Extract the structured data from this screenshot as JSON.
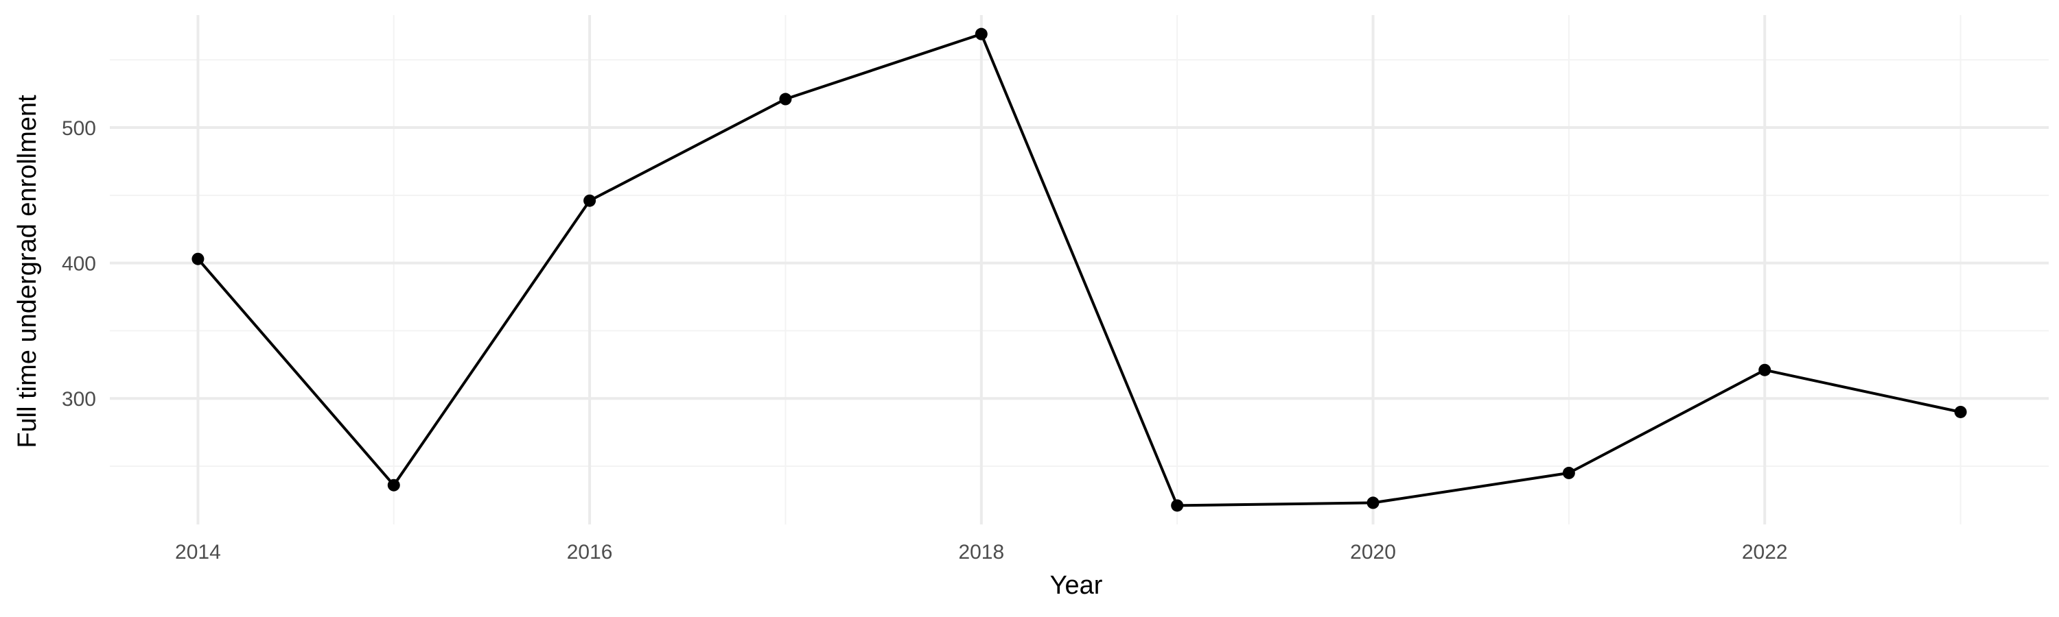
{
  "chart_data": {
    "type": "line",
    "title": "",
    "xlabel": "Year",
    "ylabel": "Full time undergrad enrollment",
    "x": [
      2014,
      2015,
      2016,
      2017,
      2018,
      2019,
      2020,
      2021,
      2022,
      2023
    ],
    "series": [
      {
        "values": [
          403,
          236,
          446,
          521,
          569,
          221,
          223,
          245,
          321,
          290
        ]
      }
    ],
    "xlim": [
      2013.55,
      2023.45
    ],
    "ylim": [
      207,
      583
    ],
    "x_ticks": [
      2014,
      2016,
      2018,
      2020,
      2022
    ],
    "x_tick_labels": [
      "2014",
      "2016",
      "2018",
      "2020",
      "2022"
    ],
    "x_minor_ticks": [
      2015,
      2017,
      2019,
      2021,
      2023
    ],
    "y_ticks": [
      300,
      400,
      500
    ],
    "y_tick_labels": [
      "300",
      "400",
      "500"
    ],
    "y_minor_ticks": [
      250,
      350,
      450,
      550
    ],
    "grid": true,
    "legend": "none",
    "colors": {
      "line": "#000000",
      "point": "#000000",
      "grid_major": "#ebebeb",
      "grid_minor": "#f3f3f3",
      "tick_label": "#4d4d4d",
      "axis_title": "#000000"
    }
  }
}
